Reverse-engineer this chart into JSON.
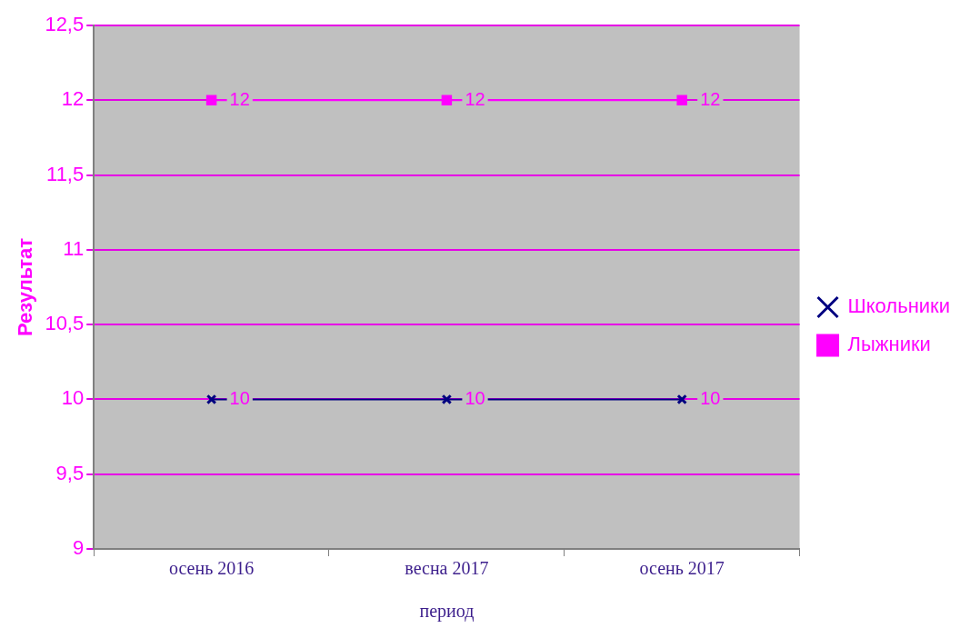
{
  "chart_data": {
    "type": "line",
    "xlabel": "период",
    "ylabel": "Результат",
    "categories": [
      "осень 2016",
      "весна 2017",
      "осень 2017"
    ],
    "series": [
      {
        "name": "Школьники",
        "color": "#000080",
        "values": [
          10,
          10,
          10
        ],
        "marker": "cross"
      },
      {
        "name": "Лыжники",
        "color": "#ff00ff",
        "values": [
          12,
          12,
          12
        ],
        "marker": "square"
      }
    ],
    "ylim": [
      9,
      12.5
    ],
    "yticks": [
      9,
      {
        "value": 9.5,
        "label": "9,5"
      },
      10,
      {
        "value": 10.5,
        "label": "10,5"
      },
      11,
      {
        "value": 11.5,
        "label": "11,5"
      },
      12,
      {
        "value": 12.5,
        "label": "12,5"
      }
    ],
    "grid": "y",
    "legend": "right",
    "data_labels": true,
    "line_style": "solid"
  }
}
